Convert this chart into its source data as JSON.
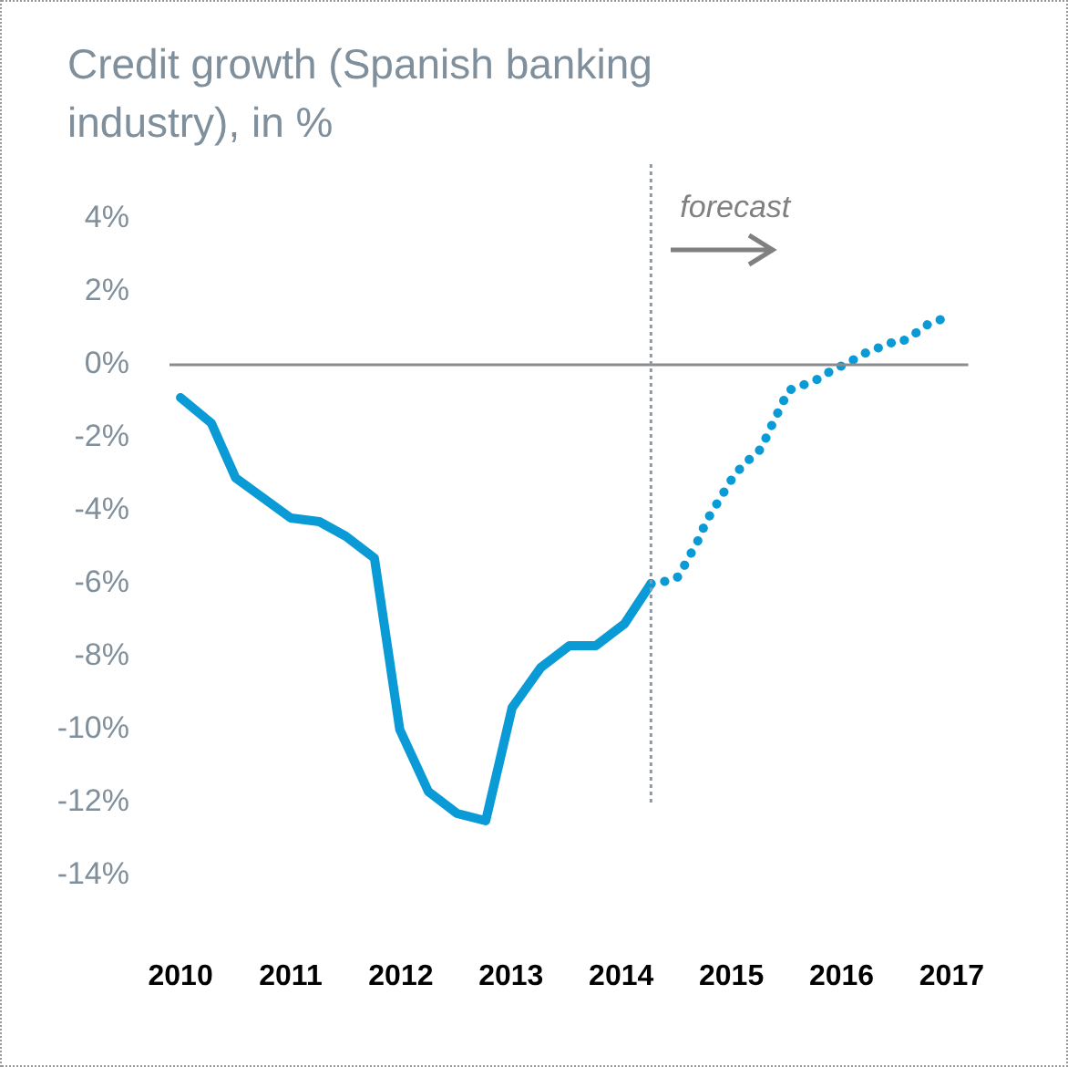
{
  "chart_data": {
    "type": "line",
    "title": "Credit growth (Spanish banking industry), in %",
    "xlim": [
      2009.9,
      2017.15
    ],
    "xticks": [
      2010,
      2011,
      2012,
      2013,
      2014,
      2015,
      2016,
      2017
    ],
    "ylim": [
      -14,
      4
    ],
    "yticks": [
      {
        "value": 4,
        "label": "4%"
      },
      {
        "value": 2,
        "label": "2%"
      },
      {
        "value": 0,
        "label": "0%"
      },
      {
        "value": -2,
        "label": "-2%"
      },
      {
        "value": -4,
        "label": "-4%"
      },
      {
        "value": -6,
        "label": "-6%"
      },
      {
        "value": -8,
        "label": "-8%"
      },
      {
        "value": -10,
        "label": "-10%"
      },
      {
        "value": -12,
        "label": "-12%"
      },
      {
        "value": -14,
        "label": "-14%"
      }
    ],
    "grid": false,
    "legend": false,
    "marker": "none",
    "series": [
      {
        "color": "#0a9ad6",
        "line_style": "solid",
        "x": [
          2010.0,
          2010.28,
          2010.5,
          2011.0,
          2011.26,
          2011.5,
          2011.76,
          2011.99,
          2012.25,
          2012.51,
          2012.77,
          2013.01,
          2013.27,
          2013.53,
          2013.77,
          2014.03,
          2014.27
        ],
        "values": [
          -0.9,
          -1.6,
          -3.1,
          -4.2,
          -4.3,
          -4.7,
          -5.3,
          -10.0,
          -11.7,
          -12.3,
          -12.5,
          -9.4,
          -8.3,
          -7.7,
          -7.7,
          -7.1,
          -6.0
        ]
      },
      {
        "color": "#0a9ad6",
        "line_style": "dotted",
        "x": [
          2014.27,
          2014.47,
          2014.52,
          2014.61,
          2014.7,
          2014.77,
          2014.87,
          2014.97,
          2015.03,
          2015.16,
          2015.27,
          2015.36,
          2015.44,
          2015.52,
          2015.7,
          2015.78,
          2015.94,
          2016.03,
          2016.2,
          2016.28,
          2016.45,
          2016.53,
          2016.69,
          2016.78,
          2016.95
        ],
        "values": [
          -6.0,
          -5.9,
          -5.8,
          -5.3,
          -4.8,
          -4.3,
          -3.8,
          -3.3,
          -3.0,
          -2.6,
          -2.3,
          -1.7,
          -1.2,
          -0.7,
          -0.5,
          -0.4,
          -0.1,
          0.0,
          0.3,
          0.4,
          0.6,
          0.6,
          0.9,
          1.1,
          1.3
        ]
      }
    ],
    "ref_lines": [
      {
        "axis": "y",
        "value": 0,
        "color": "#8c8c8c",
        "line_style": "solid"
      },
      {
        "axis": "x",
        "value": 2014.27,
        "color": "#8c99a6",
        "line_style": "dotted"
      }
    ],
    "annotations": [
      "forecast"
    ]
  }
}
